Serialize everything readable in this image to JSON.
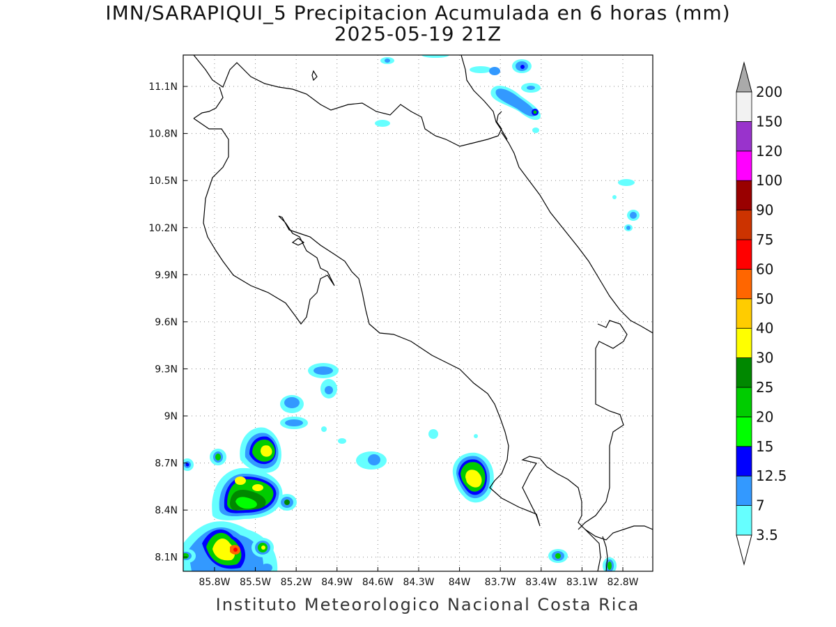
{
  "title": {
    "line1": "IMN/SARAPIQUI_5 Precipitacion Acumulada en 6 horas (mm)",
    "line2": "2025-05-19 21Z"
  },
  "footer": "Instituto Meteorologico Nacional Costa Rica",
  "map": {
    "lon_range": [
      -86.03,
      -82.58
    ],
    "lat_range": [
      8.01,
      11.3
    ],
    "lon_ticks": [
      {
        "value": -85.8,
        "label": "85.8W"
      },
      {
        "value": -85.5,
        "label": "85.5W"
      },
      {
        "value": -85.2,
        "label": "85.2W"
      },
      {
        "value": -84.9,
        "label": "84.9W"
      },
      {
        "value": -84.6,
        "label": "84.6W"
      },
      {
        "value": -84.3,
        "label": "84.3W"
      },
      {
        "value": -84.0,
        "label": "84W"
      },
      {
        "value": -83.7,
        "label": "83.7W"
      },
      {
        "value": -83.4,
        "label": "83.4W"
      },
      {
        "value": -83.1,
        "label": "83.1W"
      },
      {
        "value": -82.8,
        "label": "82.8W"
      }
    ],
    "lat_ticks": [
      {
        "value": 8.1,
        "label": "8.1N"
      },
      {
        "value": 8.4,
        "label": "8.4N"
      },
      {
        "value": 8.7,
        "label": "8.7N"
      },
      {
        "value": 9.0,
        "label": "9N"
      },
      {
        "value": 9.3,
        "label": "9.3N"
      },
      {
        "value": 9.6,
        "label": "9.6N"
      },
      {
        "value": 9.9,
        "label": "9.9N"
      },
      {
        "value": 10.2,
        "label": "10.2N"
      },
      {
        "value": 10.5,
        "label": "10.5N"
      },
      {
        "value": 10.8,
        "label": "10.8N"
      },
      {
        "value": 11.1,
        "label": "11.1N"
      }
    ],
    "grid": true
  },
  "legend": {
    "units": "mm",
    "levels": [
      "3.5",
      "7",
      "12.5",
      "15",
      "20",
      "25",
      "30",
      "40",
      "50",
      "60",
      "75",
      "90",
      "100",
      "120",
      "150",
      "200"
    ],
    "colors": [
      "#66ffff",
      "#3399ff",
      "#0000ff",
      "#00ff00",
      "#00cc00",
      "#008800",
      "#ffff00",
      "#ffcc00",
      "#ff6600",
      "#ff0000",
      "#cc3300",
      "#990000",
      "#ff00ff",
      "#9933cc",
      "#f2f2f2"
    ],
    "below_color": "#ffffff",
    "above_color": "#aaaaaa"
  }
}
